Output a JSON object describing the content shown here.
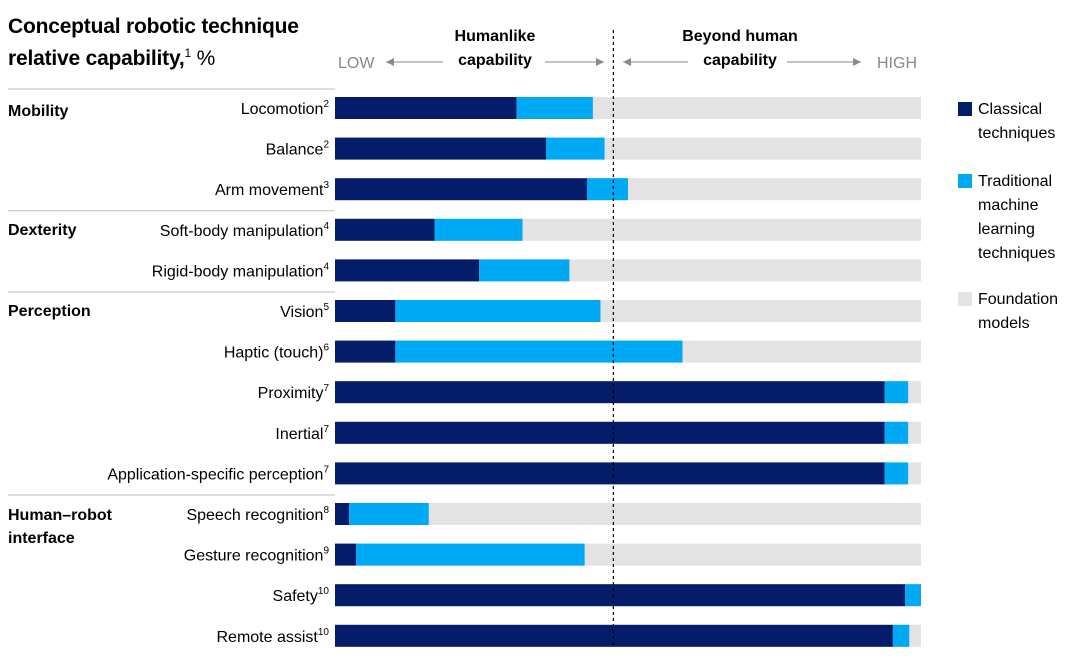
{
  "title": {
    "line1": "Conceptual robotic technique",
    "line2": "relative capability,",
    "footnote": "1",
    "unit": "%"
  },
  "header": {
    "low": "LOW",
    "high": "HIGH",
    "humanlike_1": "Humanlike",
    "humanlike_2": "capability",
    "beyond_1": "Beyond human",
    "beyond_2": "capability"
  },
  "legend": {
    "classical": "Classical techniques",
    "traditional": "Traditional machine learning techniques",
    "foundation": "Foundation models"
  },
  "colors": {
    "classical": "#051c6b",
    "traditional": "#00a9f4",
    "foundation": "#e3e3e3",
    "divider": "#bdbdbd",
    "arrow": "#8a8a8a",
    "header_gray": "#888888"
  },
  "chart_data": {
    "type": "bar",
    "orientation": "horizontal",
    "stacked": true,
    "xlim": [
      0,
      100
    ],
    "human_threshold": 47.5,
    "series_names": [
      "Classical techniques",
      "Traditional machine learning techniques",
      "Foundation models"
    ],
    "groups": [
      {
        "name": "Mobility",
        "rows": [
          0,
          1,
          2
        ]
      },
      {
        "name": "Dexterity",
        "rows": [
          3,
          4
        ]
      },
      {
        "name": "Perception",
        "rows": [
          5,
          6,
          7,
          8,
          9
        ]
      },
      {
        "name": "Human–robot interface",
        "rows": [
          10,
          11,
          12,
          13
        ]
      }
    ],
    "rows": [
      {
        "label": "Locomotion",
        "sup": "2",
        "classical": 31,
        "traditional": 13,
        "foundation": 56
      },
      {
        "label": "Balance",
        "sup": "2",
        "classical": 36,
        "traditional": 10,
        "foundation": 54
      },
      {
        "label": "Arm movement",
        "sup": "3",
        "classical": 43,
        "traditional": 7,
        "foundation": 50
      },
      {
        "label": "Soft-body manipulation",
        "sup": "4",
        "classical": 17,
        "traditional": 15,
        "foundation": 68
      },
      {
        "label": "Rigid-body manipulation",
        "sup": "4",
        "classical": 24.6,
        "traditional": 15.4,
        "foundation": 60
      },
      {
        "label": "Vision",
        "sup": "5",
        "classical": 10.3,
        "traditional": 35,
        "foundation": 54.7
      },
      {
        "label": "Haptic (touch)",
        "sup": "6",
        "classical": 10.3,
        "traditional": 49,
        "foundation": 40.7
      },
      {
        "label": "Proximity",
        "sup": "7",
        "classical": 93.8,
        "traditional": 4,
        "foundation": 2.2
      },
      {
        "label": "Inertial",
        "sup": "7",
        "classical": 93.8,
        "traditional": 4,
        "foundation": 2.2
      },
      {
        "label": "Application-specific perception",
        "sup": "7",
        "classical": 93.8,
        "traditional": 4,
        "foundation": 2.2
      },
      {
        "label": "Speech recognition",
        "sup": "8",
        "classical": 2.4,
        "traditional": 13.6,
        "foundation": 84
      },
      {
        "label": "Gesture recognition",
        "sup": "9",
        "classical": 3.6,
        "traditional": 39,
        "foundation": 57.4
      },
      {
        "label": "Safety",
        "sup": "10",
        "classical": 97.3,
        "traditional": 2.7,
        "foundation": 0
      },
      {
        "label": "Remote assist",
        "sup": "10",
        "classical": 95.2,
        "traditional": 2.8,
        "foundation": 2
      }
    ]
  }
}
